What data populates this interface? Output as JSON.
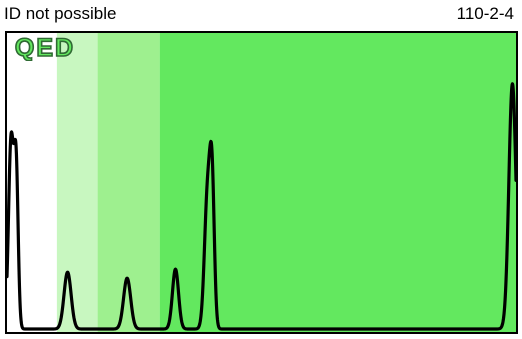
{
  "header": {
    "status": "ID not possible",
    "sample_id": "110-2-4"
  },
  "logo": {
    "text": "QED"
  },
  "colors": {
    "zone_1": "#ffffff",
    "zone_2": "#c8f7c0",
    "zone_3": "#9ef08f",
    "zone_4": "#63e85f",
    "trace": "#000000",
    "border": "#000000",
    "logo_outline": "#2f6a33"
  },
  "chart_data": {
    "type": "line",
    "title": "",
    "xlabel": "",
    "ylabel": "",
    "xlim": [
      0,
      100
    ],
    "ylim": [
      0,
      100
    ],
    "grid": false,
    "zones": [
      {
        "from": 0,
        "to": 9.8,
        "color": "#ffffff"
      },
      {
        "from": 9.8,
        "to": 17.8,
        "color": "#c8f7c0"
      },
      {
        "from": 17.8,
        "to": 30,
        "color": "#9ef08f"
      },
      {
        "from": 30,
        "to": 100,
        "color": "#63e85f"
      }
    ],
    "peaks": [
      {
        "center": 0.8,
        "height": 63,
        "width": 0.5
      },
      {
        "center": 1.8,
        "height": 52,
        "width": 0.4
      },
      {
        "center": 11.9,
        "height": 19,
        "width": 0.7
      },
      {
        "center": 23.6,
        "height": 17,
        "width": 0.7
      },
      {
        "center": 33.1,
        "height": 20,
        "width": 0.6
      },
      {
        "center": 39.4,
        "height": 45,
        "width": 0.6
      },
      {
        "center": 40.3,
        "height": 44,
        "width": 0.45
      },
      {
        "center": 99.3,
        "height": 82,
        "width": 0.7
      }
    ]
  }
}
